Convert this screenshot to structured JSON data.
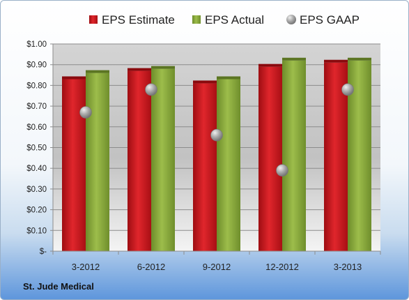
{
  "company": "St. Jude Medical",
  "chart_data": {
    "type": "bar",
    "categories": [
      "3-2012",
      "6-2012",
      "9-2012",
      "12-2012",
      "3-2013"
    ],
    "series": [
      {
        "name": "EPS Estimate",
        "kind": "bar",
        "color": "#c8161d",
        "values": [
          0.83,
          0.87,
          0.81,
          0.89,
          0.91
        ]
      },
      {
        "name": "EPS Actual",
        "kind": "bar",
        "color": "#8aac3a",
        "values": [
          0.86,
          0.88,
          0.83,
          0.92,
          0.92
        ]
      },
      {
        "name": "EPS GAAP",
        "kind": "scatter",
        "color": "#a8a8a8",
        "values": [
          0.67,
          0.78,
          0.56,
          0.39,
          0.78
        ]
      }
    ],
    "ylim": [
      0,
      1.0
    ],
    "yticks": [
      0,
      0.1,
      0.2,
      0.3,
      0.4,
      0.5,
      0.6,
      0.7,
      0.8,
      0.9,
      1.0
    ],
    "ytick_labels": [
      "$-",
      "$0.10",
      "$0.20",
      "$0.30",
      "$0.40",
      "$0.50",
      "$0.60",
      "$0.70",
      "$0.80",
      "$0.90",
      "$1.00"
    ],
    "legend_position": "top",
    "grid": true
  }
}
